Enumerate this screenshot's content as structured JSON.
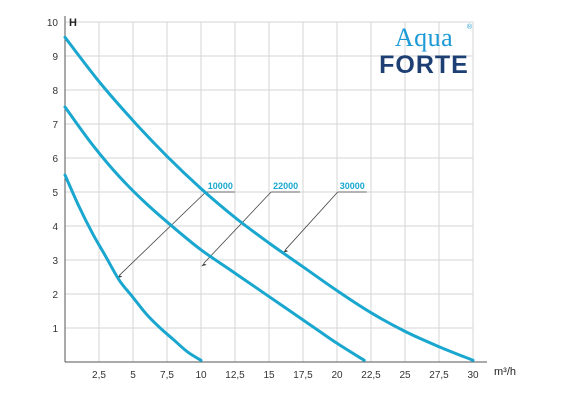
{
  "chart_data": {
    "type": "line",
    "title": "",
    "xlabel": "m³/h",
    "ylabel": "H",
    "xlim": [
      0,
      30
    ],
    "ylim": [
      0,
      10
    ],
    "grid": true,
    "x_ticks": [
      "2,5",
      "5",
      "7,5",
      "10",
      "12,5",
      "15",
      "17,5",
      "20",
      "22,5",
      "25",
      "27,5",
      "30"
    ],
    "y_ticks": [
      "1",
      "2",
      "3",
      "4",
      "5",
      "6",
      "7",
      "8",
      "9",
      "10"
    ],
    "series": [
      {
        "name": "10000",
        "color": "#1aa7cf",
        "x": [
          0,
          1,
          2,
          3,
          4,
          5,
          6,
          7,
          8,
          9,
          10
        ],
        "y": [
          5.5,
          4.6,
          3.8,
          3.1,
          2.4,
          1.9,
          1.4,
          1.0,
          0.65,
          0.3,
          0.05
        ]
      },
      {
        "name": "22000",
        "color": "#1aa7cf",
        "x": [
          0,
          2,
          4,
          6,
          8,
          10,
          12,
          14,
          16,
          18,
          20,
          22
        ],
        "y": [
          7.5,
          6.4,
          5.45,
          4.65,
          3.95,
          3.3,
          2.75,
          2.2,
          1.65,
          1.1,
          0.55,
          0.05
        ]
      },
      {
        "name": "30000",
        "color": "#1aa7cf",
        "x": [
          0,
          2.5,
          5,
          7.5,
          10,
          12.5,
          15,
          17.5,
          20,
          22.5,
          25,
          27.5,
          30
        ],
        "y": [
          9.55,
          8.25,
          7.1,
          6.05,
          5.1,
          4.25,
          3.5,
          2.8,
          2.1,
          1.45,
          0.9,
          0.45,
          0.05
        ]
      }
    ],
    "annotations": [
      {
        "text": "10000",
        "series": "10000",
        "label_at": [
          10.5,
          5.0
        ],
        "points_to": [
          4,
          2.55
        ]
      },
      {
        "text": "22000",
        "series": "22000",
        "label_at": [
          15.3,
          5.0
        ],
        "points_to": [
          10.2,
          2.9
        ]
      },
      {
        "text": "30000",
        "series": "30000",
        "label_at": [
          20.2,
          5.0
        ],
        "points_to": [
          16.2,
          3.3
        ]
      }
    ]
  },
  "logo": {
    "top_text": "Aqua",
    "bottom_text": "FORTE",
    "registered_mark": "®"
  }
}
